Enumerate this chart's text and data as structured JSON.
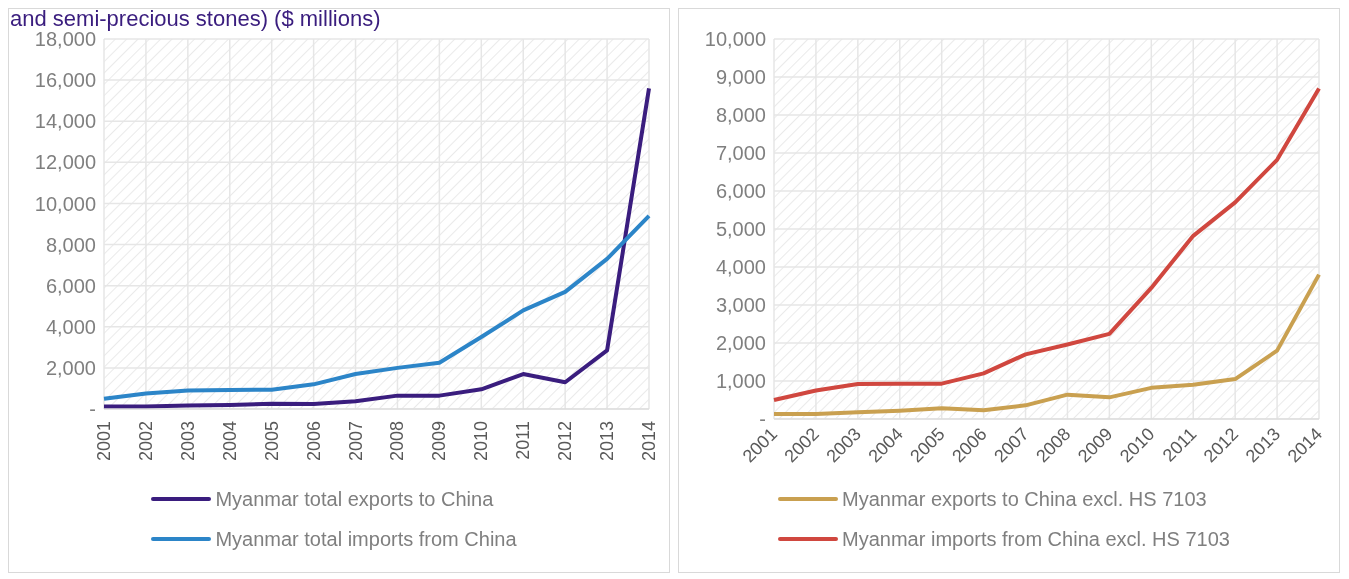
{
  "chart_data": [
    {
      "type": "line",
      "title": "and semi-precious stones) ($ millions)",
      "categories": [
        "2001",
        "2002",
        "2003",
        "2004",
        "2005",
        "2006",
        "2007",
        "2008",
        "2009",
        "2010",
        "2011",
        "2012",
        "2013",
        "2014"
      ],
      "series": [
        {
          "name": "Myanmar total exports to China",
          "color": "#3a1d7e",
          "values": [
            120,
            120,
            170,
            200,
            250,
            240,
            380,
            650,
            650,
            960,
            1700,
            1300,
            2850,
            15600
          ]
        },
        {
          "name": "Myanmar total imports from China",
          "color": "#2c85c8",
          "values": [
            500,
            750,
            900,
            930,
            940,
            1200,
            1700,
            2000,
            2250,
            3500,
            4800,
            5700,
            7300,
            9400
          ]
        }
      ],
      "ylim": [
        0,
        18000
      ],
      "yticks": [
        {
          "value": 0,
          "label": "-"
        },
        {
          "value": 2000,
          "label": "2,000"
        },
        {
          "value": 4000,
          "label": "4,000"
        },
        {
          "value": 6000,
          "label": "6,000"
        },
        {
          "value": 8000,
          "label": "8,000"
        },
        {
          "value": 10000,
          "label": "10,000"
        },
        {
          "value": 12000,
          "label": "12,000"
        },
        {
          "value": 14000,
          "label": "14,000"
        },
        {
          "value": 16000,
          "label": "16,000"
        },
        {
          "value": 18000,
          "label": "18,000"
        }
      ],
      "grid": true,
      "legend": "bottom",
      "marker": "none",
      "line_style": "solid"
    },
    {
      "type": "line",
      "categories": [
        "2001",
        "2002",
        "2003",
        "2004",
        "2005",
        "2006",
        "2007",
        "2008",
        "2009",
        "2010",
        "2011",
        "2012",
        "2013",
        "2014"
      ],
      "series": [
        {
          "name": "Myanmar exports to China excl. HS 7103",
          "color": "#c9a050",
          "values": [
            130,
            130,
            180,
            220,
            280,
            230,
            360,
            640,
            570,
            820,
            900,
            1050,
            1800,
            3800
          ]
        },
        {
          "name": "Myanmar imports from China excl. HS 7103",
          "color": "#d0473f",
          "values": [
            500,
            750,
            920,
            930,
            930,
            1200,
            1700,
            1960,
            2240,
            3450,
            4820,
            5700,
            6820,
            8700
          ]
        }
      ],
      "ylim": [
        0,
        10000
      ],
      "yticks": [
        {
          "value": 0,
          "label": "-"
        },
        {
          "value": 1000,
          "label": "1,000"
        },
        {
          "value": 2000,
          "label": "2,000"
        },
        {
          "value": 3000,
          "label": "3,000"
        },
        {
          "value": 4000,
          "label": "4,000"
        },
        {
          "value": 5000,
          "label": "5,000"
        },
        {
          "value": 6000,
          "label": "6,000"
        },
        {
          "value": 7000,
          "label": "7,000"
        },
        {
          "value": 8000,
          "label": "8,000"
        },
        {
          "value": 9000,
          "label": "9,000"
        },
        {
          "value": 10000,
          "label": "10,000"
        }
      ],
      "grid": true,
      "legend": "bottom",
      "marker": "none",
      "line_style": "solid"
    }
  ]
}
